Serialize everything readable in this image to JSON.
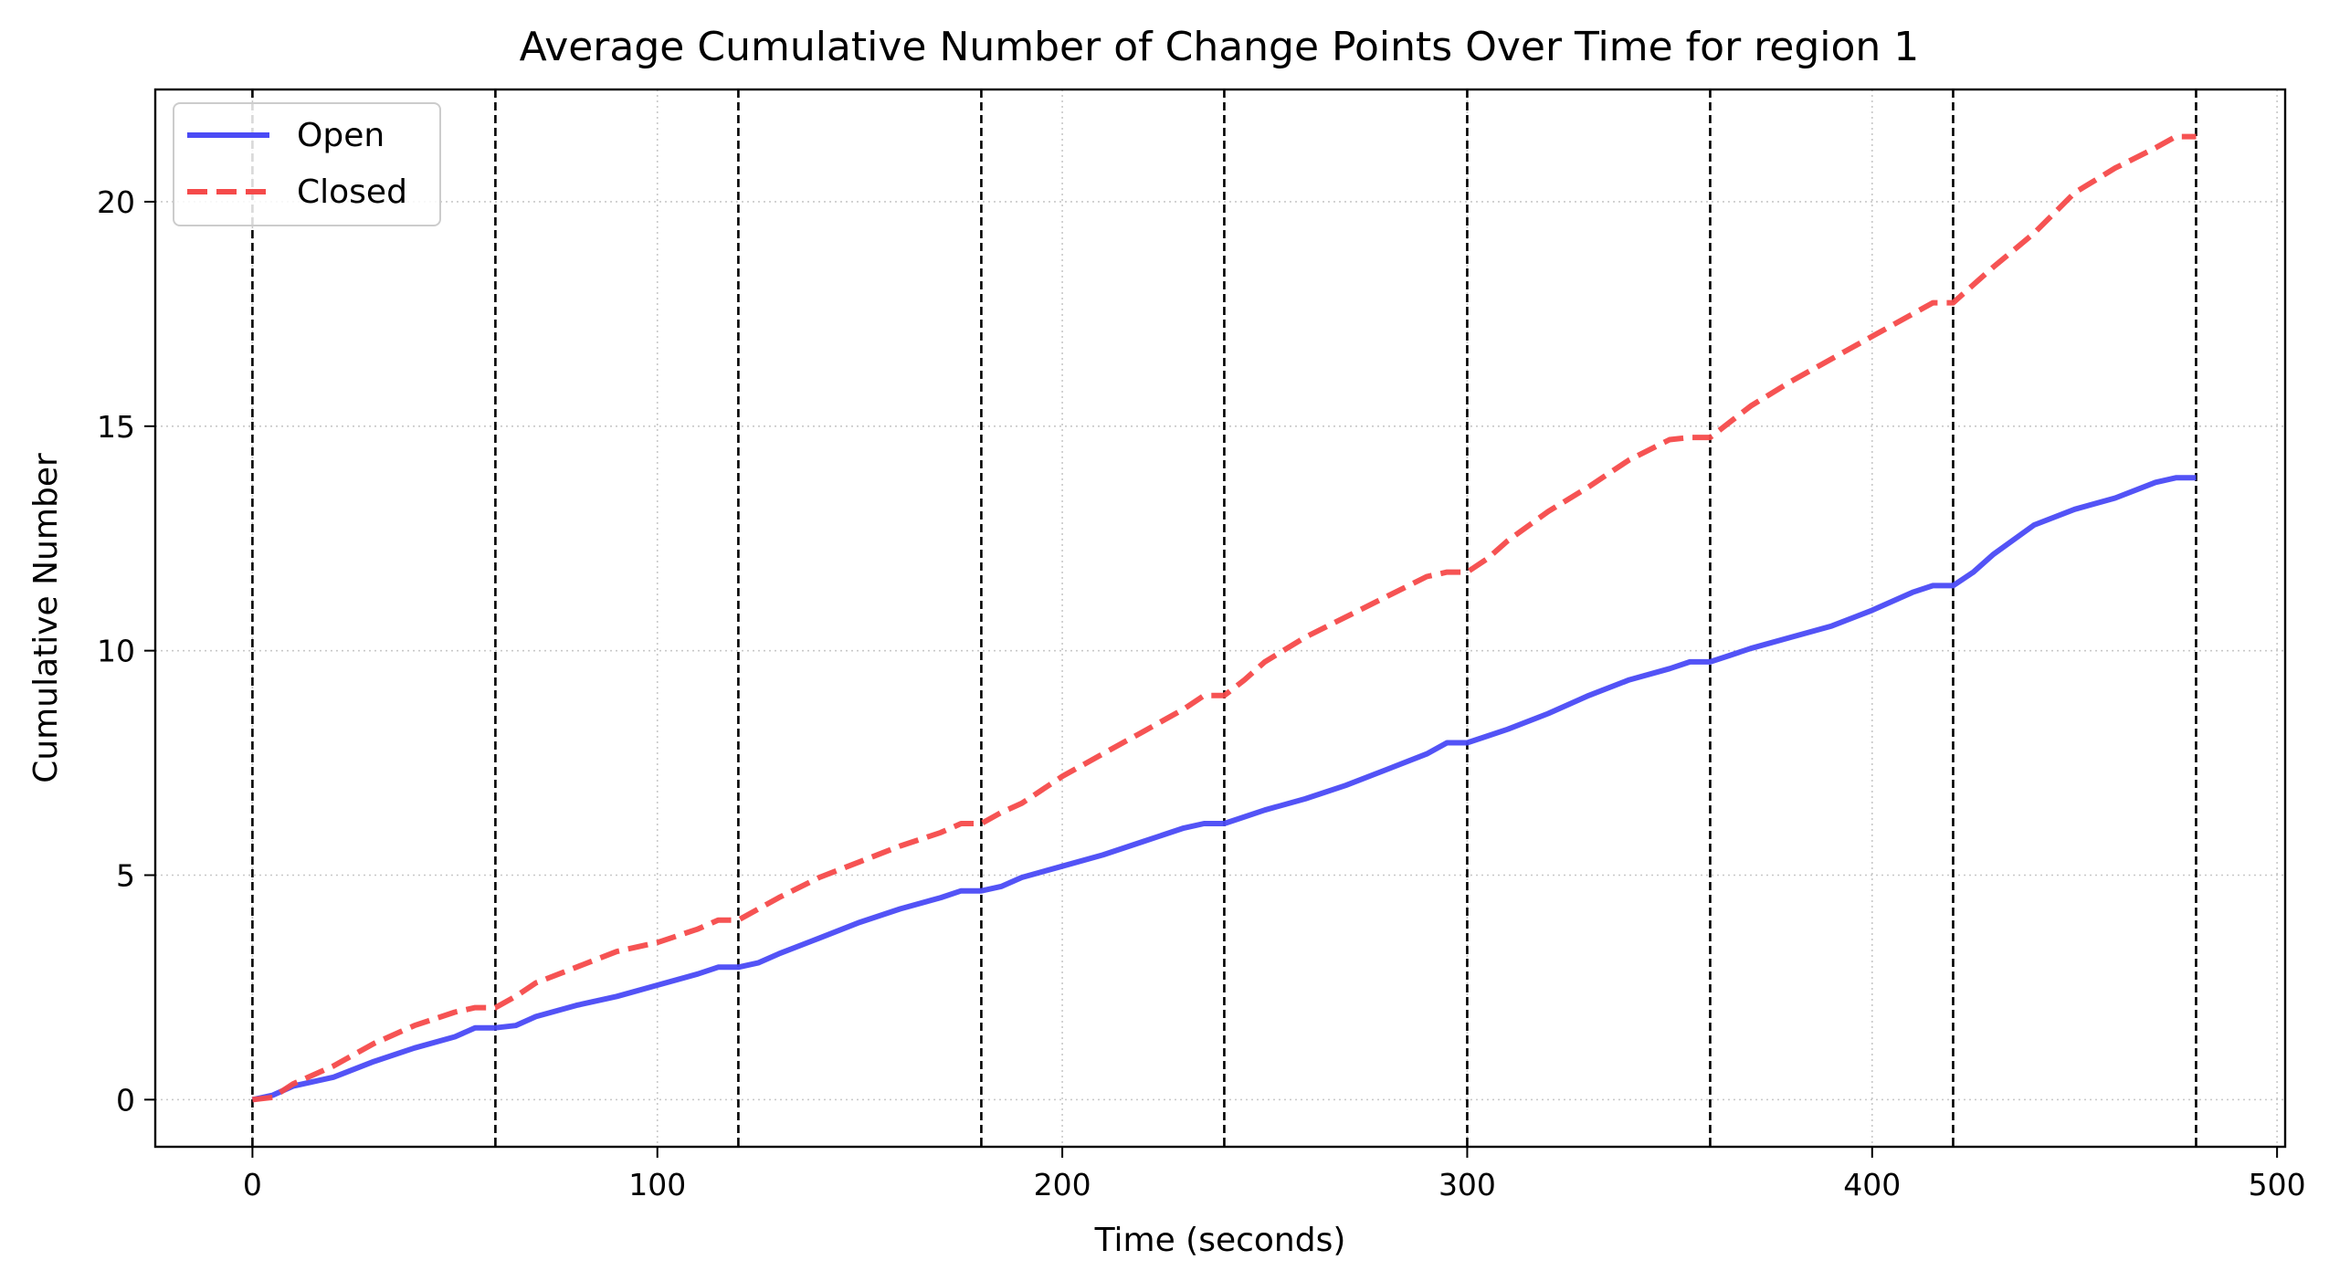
{
  "chart_data": {
    "type": "line",
    "title": "Average Cumulative Number of Change Points Over Time for region 1",
    "xlabel": "Time (seconds)",
    "ylabel": "Cumulative Number",
    "xlim": [
      -24,
      502
    ],
    "ylim": [
      -1.05,
      22.5
    ],
    "xticks": [
      0,
      100,
      200,
      300,
      400,
      500
    ],
    "yticks": [
      0,
      5,
      10,
      15,
      20
    ],
    "grid": true,
    "legend_position": "top-left",
    "vertical_markers": [
      0,
      60,
      120,
      180,
      240,
      300,
      360,
      420,
      480
    ],
    "series": [
      {
        "name": "Open",
        "color": "#4a4af5",
        "style": "solid",
        "x": [
          0,
          5,
          10,
          20,
          30,
          40,
          50,
          55,
          60,
          65,
          70,
          80,
          90,
          100,
          110,
          115,
          120,
          125,
          130,
          140,
          150,
          160,
          170,
          175,
          180,
          185,
          190,
          200,
          210,
          220,
          230,
          235,
          240,
          245,
          250,
          260,
          270,
          280,
          290,
          295,
          300,
          305,
          310,
          320,
          330,
          340,
          350,
          355,
          360,
          365,
          370,
          380,
          390,
          400,
          410,
          415,
          420,
          425,
          430,
          440,
          450,
          460,
          470,
          475,
          480
        ],
        "y": [
          0,
          0.1,
          0.3,
          0.5,
          0.85,
          1.15,
          1.4,
          1.6,
          1.6,
          1.65,
          1.85,
          2.1,
          2.3,
          2.55,
          2.8,
          2.95,
          2.95,
          3.05,
          3.25,
          3.6,
          3.95,
          4.25,
          4.5,
          4.65,
          4.65,
          4.75,
          4.95,
          5.2,
          5.45,
          5.75,
          6.05,
          6.15,
          6.15,
          6.3,
          6.45,
          6.7,
          7.0,
          7.35,
          7.7,
          7.95,
          7.95,
          8.1,
          8.25,
          8.6,
          9.0,
          9.35,
          9.6,
          9.75,
          9.75,
          9.9,
          10.05,
          10.3,
          10.55,
          10.9,
          11.3,
          11.45,
          11.45,
          11.75,
          12.15,
          12.8,
          13.15,
          13.4,
          13.75,
          13.85,
          13.85
        ]
      },
      {
        "name": "Closed",
        "color": "#f54a4a",
        "style": "dashed",
        "x": [
          0,
          5,
          10,
          20,
          30,
          40,
          50,
          55,
          60,
          65,
          70,
          80,
          90,
          100,
          110,
          115,
          120,
          125,
          130,
          140,
          150,
          160,
          170,
          175,
          180,
          185,
          190,
          200,
          210,
          220,
          230,
          235,
          240,
          245,
          250,
          260,
          270,
          280,
          290,
          295,
          300,
          305,
          310,
          320,
          330,
          340,
          350,
          355,
          360,
          365,
          370,
          380,
          390,
          400,
          410,
          415,
          420,
          425,
          430,
          440,
          450,
          460,
          470,
          475,
          480
        ],
        "y": [
          0,
          0.05,
          0.35,
          0.75,
          1.25,
          1.65,
          1.95,
          2.05,
          2.05,
          2.3,
          2.6,
          2.95,
          3.3,
          3.5,
          3.8,
          4.0,
          4.0,
          4.25,
          4.5,
          4.95,
          5.3,
          5.65,
          5.95,
          6.15,
          6.15,
          6.4,
          6.6,
          7.2,
          7.7,
          8.2,
          8.7,
          9.0,
          9.0,
          9.35,
          9.75,
          10.3,
          10.75,
          11.2,
          11.65,
          11.75,
          11.75,
          12.05,
          12.45,
          13.1,
          13.65,
          14.25,
          14.7,
          14.75,
          14.75,
          15.1,
          15.45,
          16.0,
          16.5,
          17.0,
          17.5,
          17.75,
          17.75,
          18.15,
          18.55,
          19.3,
          20.2,
          20.75,
          21.2,
          21.45,
          21.45
        ]
      }
    ]
  }
}
